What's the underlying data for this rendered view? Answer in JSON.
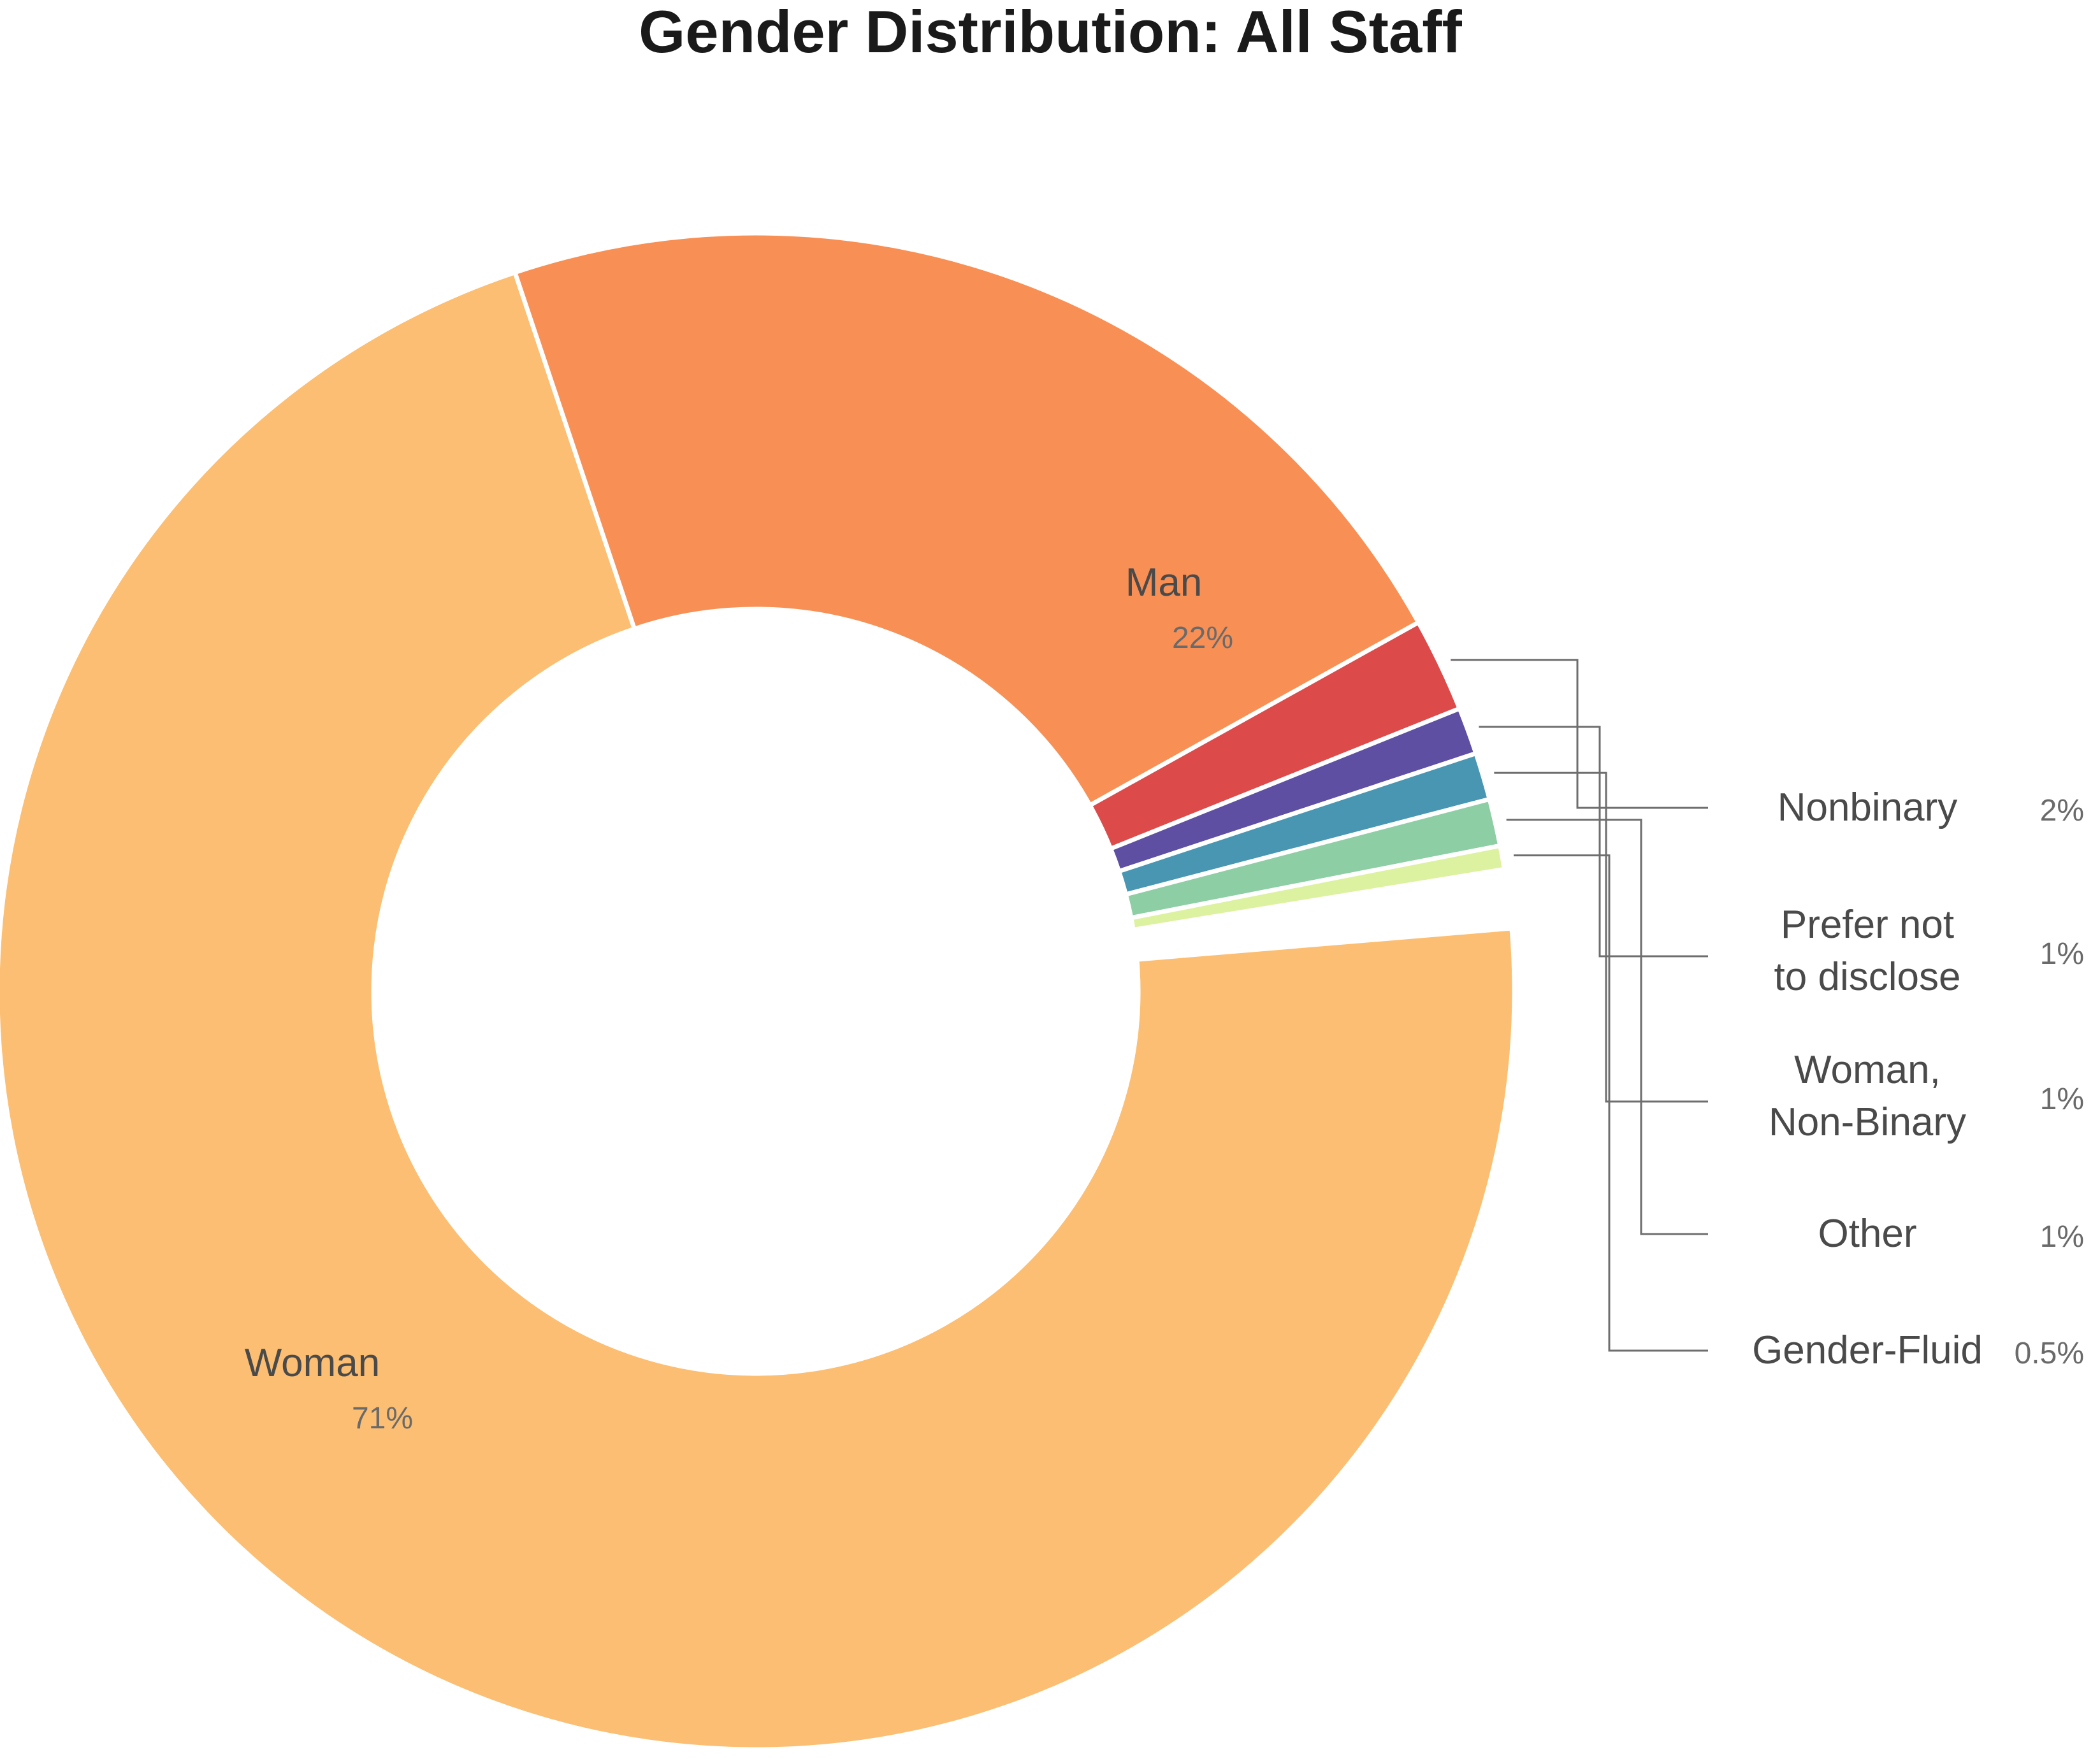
{
  "chart_data": {
    "type": "pie",
    "variant": "donut",
    "title": "Gender Distribution: All Staff",
    "slices": [
      {
        "label": "Woman",
        "value": 71,
        "value_label": "71%",
        "color": "#FBBE72"
      },
      {
        "label": "Man",
        "value": 22,
        "value_label": "22%",
        "color": "#F88F55"
      },
      {
        "label": "Nonbinary",
        "value": 2,
        "value_label": "2%",
        "color": "#DC4A4A"
      },
      {
        "label": "Prefer not to disclose",
        "value": 1,
        "value_label": "1%",
        "color": "#5E4FA2"
      },
      {
        "label": "Woman, Non-Binary",
        "value": 1,
        "value_label": "1%",
        "color": "#4896B2"
      },
      {
        "label": "Other",
        "value": 1,
        "value_label": "1%",
        "color": "#8ECEA5"
      },
      {
        "label": "Gender-Fluid",
        "value": 0.5,
        "value_label": "0.5%",
        "color": "#DDF2A0"
      }
    ],
    "legend": "none"
  }
}
